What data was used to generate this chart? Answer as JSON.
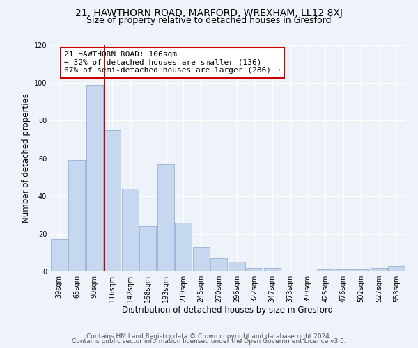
{
  "title1": "21, HAWTHORN ROAD, MARFORD, WREXHAM, LL12 8XJ",
  "title2": "Size of property relative to detached houses in Gresford",
  "xlabel": "Distribution of detached houses by size in Gresford",
  "ylabel": "Number of detached properties",
  "categories": [
    "39sqm",
    "65sqm",
    "90sqm",
    "116sqm",
    "142sqm",
    "168sqm",
    "193sqm",
    "219sqm",
    "245sqm",
    "270sqm",
    "296sqm",
    "322sqm",
    "347sqm",
    "373sqm",
    "399sqm",
    "425sqm",
    "476sqm",
    "502sqm",
    "527sqm",
    "553sqm"
  ],
  "values": [
    17,
    59,
    99,
    75,
    44,
    24,
    57,
    26,
    13,
    7,
    5,
    2,
    2,
    0,
    0,
    1,
    1,
    1,
    2,
    3
  ],
  "bar_color": "#c5d8f0",
  "bar_edge_color": "#a0b8d8",
  "vline_color": "#cc0000",
  "annotation_line1": "21 HAWTHORN ROAD: 106sqm",
  "annotation_line2": "← 32% of detached houses are smaller (136)",
  "annotation_line3": "67% of semi-detached houses are larger (286) →",
  "annotation_box_color": "white",
  "annotation_box_edge_color": "#cc0000",
  "ylim": [
    0,
    120
  ],
  "yticks": [
    0,
    20,
    40,
    60,
    80,
    100,
    120
  ],
  "footer1": "Contains HM Land Registry data © Crown copyright and database right 2024.",
  "footer2": "Contains public sector information licensed under the Open Government Licence v3.0.",
  "background_color": "#eef2f9",
  "grid_color": "white",
  "title1_fontsize": 10,
  "title2_fontsize": 9,
  "xlabel_fontsize": 8.5,
  "ylabel_fontsize": 8.5,
  "tick_fontsize": 7,
  "annotation_fontsize": 8,
  "footer_fontsize": 6.5
}
